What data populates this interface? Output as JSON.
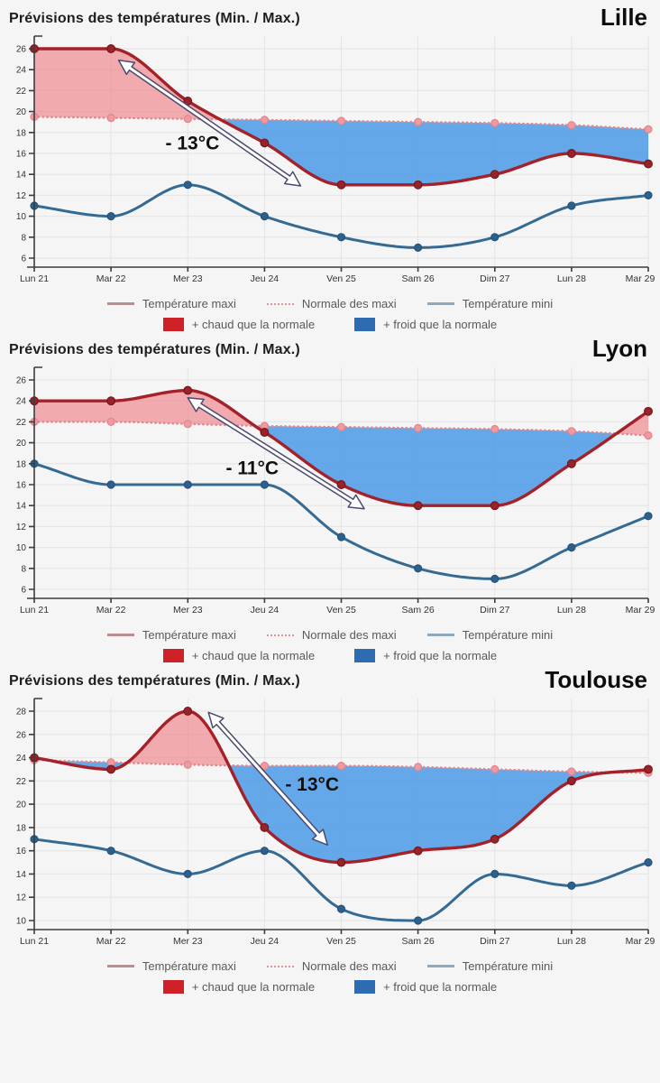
{
  "page": {
    "background_color": "#f5f5f5"
  },
  "legend": {
    "maxi_label": "Température maxi",
    "normale_label": "Normale des maxi",
    "mini_label": "Température mini",
    "warmer_label": "+ chaud que la normale",
    "colder_label": "+ froid que la normale",
    "warmer_color": "#cd2027",
    "colder_color": "#2e6cb2",
    "position": "bottom"
  },
  "colors": {
    "maxi_line": "#a32129",
    "maxi_marker_fill": "#98242b",
    "maxi_marker_stroke": "#7c161c",
    "normale_line": "#e2878d",
    "normale_marker_fill": "#ee9aa0",
    "normale_marker_stroke": "#e4858c",
    "mini_line": "#356a92",
    "mini_marker_fill": "#2d608c",
    "mini_marker_stroke": "#24537c",
    "warm_fill": "#ef7e85",
    "warm_fill_opacity": 0.62,
    "cold_fill": "#4a9ae6",
    "cold_fill_opacity": 0.85,
    "grid": "#e4e4e4",
    "axis": "#3c3c3c",
    "tick_text": "#333333",
    "annotation_text": "#0f0f0f",
    "arrow_outline": "#4a4a70",
    "arrow_fill": "#ffffff"
  },
  "chart_data": [
    {
      "type": "line",
      "city": "Lille",
      "title": "Prévisions des températures (Min. / Max.)",
      "categories": [
        "Lun 21",
        "Mar 22",
        "Mer 23",
        "Jeu 24",
        "Ven 25",
        "Sam 26",
        "Dim 27",
        "Lun 28",
        "Mar 29"
      ],
      "xlabel": "",
      "ylabel": "",
      "yticks": {
        "min": 6,
        "max": 26,
        "step": 2
      },
      "grid": true,
      "series": [
        {
          "name": "Température maxi",
          "values": [
            26,
            26,
            21,
            17,
            13,
            13,
            14,
            16,
            15
          ]
        },
        {
          "name": "Normale des maxi",
          "values": [
            19.5,
            19.4,
            19.3,
            19.2,
            19.1,
            19.0,
            18.9,
            18.7,
            18.3
          ]
        },
        {
          "name": "Température mini",
          "values": [
            11,
            10,
            13,
            10,
            8,
            7,
            8,
            11,
            12
          ]
        }
      ],
      "fill_rule": "red where maxi > normale (+ chaud), blue where maxi < normale (+ froid)",
      "annotation": {
        "text": "- 13°C",
        "arrow_from": {
          "x": 1.1,
          "y": 24.9
        },
        "arrow_to": {
          "x": 3.47,
          "y": 12.9
        },
        "text_at": {
          "x": 2.06,
          "y": 17.0
        }
      }
    },
    {
      "type": "line",
      "city": "Lyon",
      "title": "Prévisions des températures (Min. / Max.)",
      "categories": [
        "Lun 21",
        "Mar 22",
        "Mer 23",
        "Jeu 24",
        "Ven 25",
        "Sam 26",
        "Dim 27",
        "Lun 28",
        "Mar 29"
      ],
      "xlabel": "",
      "ylabel": "",
      "yticks": {
        "min": 6,
        "max": 26,
        "step": 2
      },
      "grid": true,
      "series": [
        {
          "name": "Température maxi",
          "values": [
            24,
            24,
            25,
            21,
            16,
            14,
            14,
            18,
            23
          ]
        },
        {
          "name": "Normale des maxi",
          "values": [
            22.0,
            22.0,
            21.8,
            21.6,
            21.5,
            21.4,
            21.3,
            21.1,
            20.7
          ]
        },
        {
          "name": "Température mini",
          "values": [
            18,
            16,
            16,
            16,
            11,
            8,
            7,
            10,
            13
          ]
        }
      ],
      "fill_rule": "red where maxi > normale (+ chaud), blue where maxi < normale (+ froid)",
      "annotation": {
        "text": "- 11°C",
        "arrow_from": {
          "x": 2.0,
          "y": 24.3
        },
        "arrow_to": {
          "x": 4.3,
          "y": 13.7
        },
        "text_at": {
          "x": 2.84,
          "y": 17.6
        }
      }
    },
    {
      "type": "line",
      "city": "Toulouse",
      "title": "Prévisions des températures (Min. / Max.)",
      "categories": [
        "Lun 21",
        "Mar 22",
        "Mer 23",
        "Jeu 24",
        "Ven 25",
        "Sam 26",
        "Dim 27",
        "Lun 28",
        "Mar 29"
      ],
      "xlabel": "",
      "ylabel": "",
      "yticks": {
        "min": 10,
        "max": 28,
        "step": 2
      },
      "grid": true,
      "series": [
        {
          "name": "Température maxi",
          "values": [
            24,
            23,
            28,
            18,
            15,
            16,
            17,
            22,
            23
          ]
        },
        {
          "name": "Normale des maxi",
          "values": [
            23.8,
            23.6,
            23.4,
            23.3,
            23.3,
            23.2,
            23.0,
            22.8,
            22.7
          ]
        },
        {
          "name": "Température mini",
          "values": [
            17,
            16,
            14,
            16,
            11,
            10,
            14,
            13,
            15
          ]
        }
      ],
      "fill_rule": "red where maxi > normale (+ chaud), blue where maxi < normale (+ froid)",
      "annotation": {
        "text": "- 13°C",
        "arrow_from": {
          "x": 2.27,
          "y": 27.9
        },
        "arrow_to": {
          "x": 3.82,
          "y": 16.5
        },
        "text_at": {
          "x": 3.62,
          "y": 21.7
        }
      }
    }
  ]
}
